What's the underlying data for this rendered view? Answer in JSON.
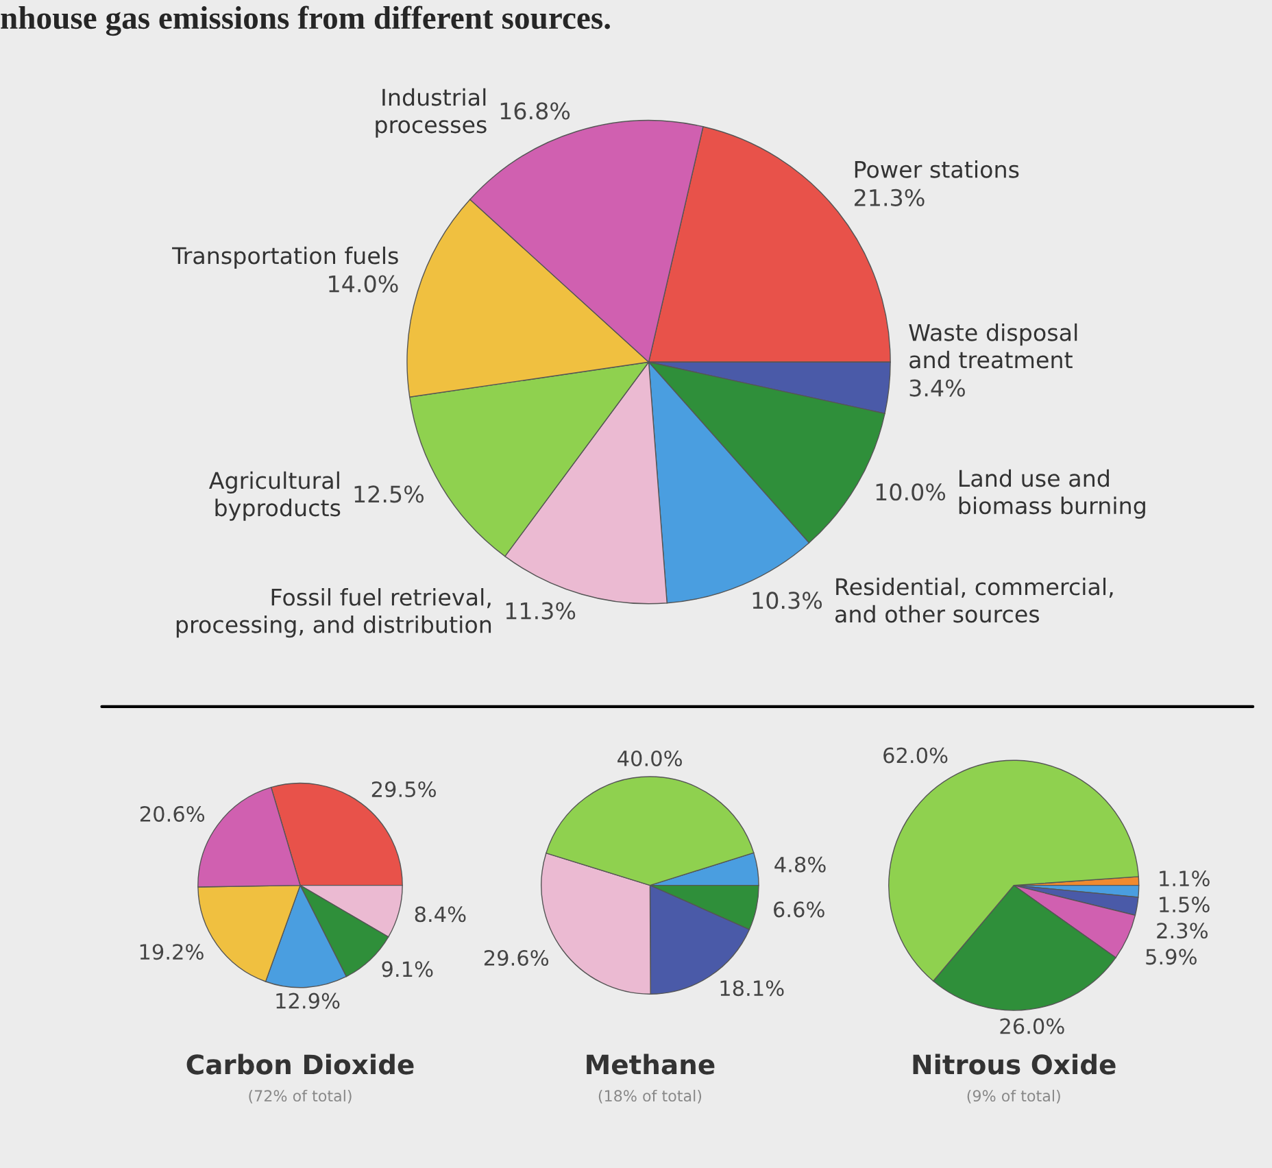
{
  "chart_data": [
    {
      "type": "pie",
      "title": "nhouse gas emissions from different sources.",
      "categories": [
        "Power stations",
        "Waste disposal\nand treatment",
        "Land use and\nbiomass burning",
        "Residential, commercial,\nand other sources",
        "Fossil fuel retrieval,\nprocessing, and distribution",
        "Agricultural\nbyproducts",
        "Transportation fuels",
        "Industrial\nprocesses"
      ],
      "values": [
        21.3,
        3.4,
        10.0,
        10.3,
        11.3,
        12.5,
        14.0,
        16.8
      ],
      "value_labels": [
        "21.3%",
        "3.4%",
        "10.0%",
        "10.3%",
        "11.3%",
        "12.5%",
        "14.0%",
        "16.8%"
      ],
      "colors": [
        "#e8524a",
        "#4a5aa8",
        "#2f8f3a",
        "#4a9ee0",
        "#ebbad2",
        "#8fd14f",
        "#f0c040",
        "#d060b0"
      ]
    },
    {
      "type": "pie",
      "title": "Carbon Dioxide",
      "subtitle": "(72% of total)",
      "categories": [
        null,
        null,
        null,
        null,
        null,
        null
      ],
      "values": [
        29.5,
        8.4,
        9.1,
        12.9,
        19.2,
        20.6
      ],
      "value_labels": [
        "29.5%",
        "8.4%",
        "9.1%",
        "12.9%",
        "19.2%",
        "20.6%"
      ],
      "colors": [
        "#e8524a",
        "#ebbad2",
        "#2f8f3a",
        "#4a9ee0",
        "#f0c040",
        "#d060b0"
      ]
    },
    {
      "type": "pie",
      "title": "Methane",
      "subtitle": "(18% of total)",
      "categories": [
        null,
        null,
        null,
        null,
        null
      ],
      "values": [
        4.8,
        6.6,
        18.1,
        29.6,
        40.0
      ],
      "value_labels": [
        "4.8%",
        "6.6%",
        "18.1%",
        "29.6%",
        "40.0%"
      ],
      "colors": [
        "#4a9ee0",
        "#2f8f3a",
        "#4a5aa8",
        "#ebbad2",
        "#8fd14f"
      ]
    },
    {
      "type": "pie",
      "title": "Nitrous Oxide",
      "subtitle": "(9% of total)",
      "categories": [
        null,
        null,
        null,
        null,
        null,
        null
      ],
      "values": [
        1.1,
        1.5,
        2.3,
        5.9,
        26.0,
        62.0
      ],
      "value_labels": [
        "1.1%",
        "1.5%",
        "2.3%",
        "5.9%",
        "26.0%",
        "62.0%"
      ],
      "colors": [
        "#f08a30",
        "#4a9ee0",
        "#4a5aa8",
        "#d060b0",
        "#2f8f3a",
        "#8fd14f"
      ]
    }
  ]
}
